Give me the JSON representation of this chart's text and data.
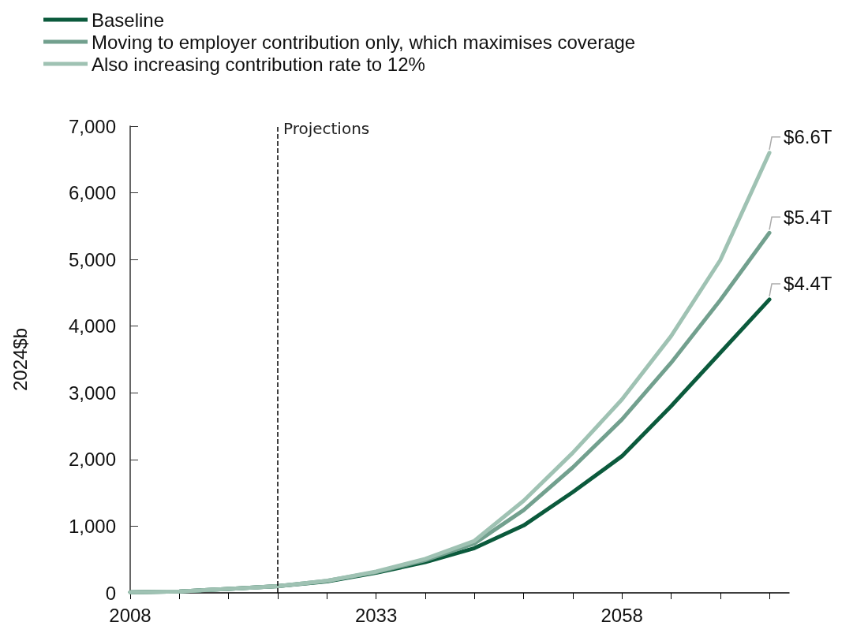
{
  "chart_data": {
    "type": "line",
    "ylabel": "2024$b",
    "x": [
      2008,
      2013,
      2018,
      2023,
      2028,
      2033,
      2038,
      2043,
      2048,
      2053,
      2058,
      2063,
      2068,
      2073
    ],
    "series": [
      {
        "name": "Baseline",
        "color": "#0b5a3c",
        "values": [
          10,
          20,
          60,
          100,
          170,
          300,
          460,
          670,
          1010,
          1510,
          2050,
          2800,
          3600,
          4400
        ]
      },
      {
        "name": "Moving to employer contribution only, which maximises coverage",
        "color": "#72a08e",
        "values": [
          10,
          20,
          60,
          100,
          180,
          310,
          490,
          740,
          1240,
          1880,
          2600,
          3450,
          4390,
          5400
        ]
      },
      {
        "name": "Also increasing contribution rate to 12%",
        "color": "#9fc2b3",
        "values": [
          10,
          20,
          60,
          100,
          180,
          320,
          510,
          780,
          1380,
          2100,
          2900,
          3850,
          4990,
          6600
        ]
      }
    ],
    "annotations": [
      "$6.6T",
      "$5.4T",
      "$4.4T"
    ],
    "xlim": [
      2008,
      2075
    ],
    "xticks": [
      2008,
      {
        "value": 2013,
        "label": null
      },
      {
        "value": 2018,
        "label": null
      },
      {
        "value": 2023,
        "label": null
      },
      {
        "value": 2028,
        "label": null
      },
      2033,
      {
        "value": 2038,
        "label": null
      },
      {
        "value": 2043,
        "label": null
      },
      {
        "value": 2048,
        "label": null
      },
      {
        "value": 2053,
        "label": null
      },
      2058,
      {
        "value": 2063,
        "label": null
      },
      {
        "value": 2068,
        "label": null
      },
      {
        "value": 2073,
        "label": null
      }
    ],
    "ylim": [
      0,
      7000
    ],
    "yticks": [
      0,
      {
        "value": 1000,
        "label": "1,000"
      },
      {
        "value": 2000,
        "label": "2,000"
      },
      {
        "value": 3000,
        "label": "3,000"
      },
      {
        "value": 4000,
        "label": "4,000"
      },
      {
        "value": 5000,
        "label": "5,000"
      },
      {
        "value": 6000,
        "label": "6,000"
      },
      {
        "value": 7000,
        "label": "7,000"
      }
    ],
    "ref_lines": [
      {
        "axis": "x",
        "value": 2023,
        "label": "Projections",
        "line_style": "dashed",
        "color": "#000000"
      }
    ],
    "grid": false,
    "legend": "top left",
    "marker": "none",
    "line_style": "solid"
  }
}
